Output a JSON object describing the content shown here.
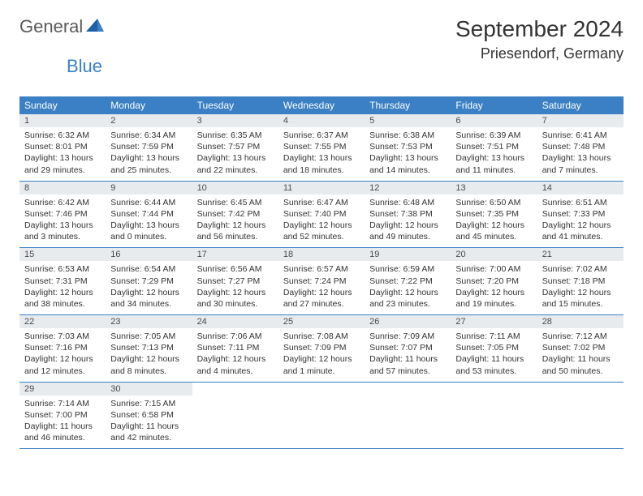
{
  "logo": {
    "text1": "General",
    "text2": "Blue"
  },
  "title": "September 2024",
  "location": "Priesendorf, Germany",
  "headers": [
    "Sunday",
    "Monday",
    "Tuesday",
    "Wednesday",
    "Thursday",
    "Friday",
    "Saturday"
  ],
  "colors": {
    "header_bg": "#3b7fc4",
    "header_text": "#ffffff",
    "daynum_bg": "#e8ebee",
    "cell_border": "#3b7fc4",
    "body_text": "#333333",
    "logo_gray": "#5a5a5a",
    "logo_blue": "#3b7fc4",
    "background": "#ffffff"
  },
  "typography": {
    "title_fontsize": 28,
    "location_fontsize": 18,
    "header_fontsize": 12,
    "daynum_fontsize": 11,
    "info_fontsize": 10.5,
    "font_family": "Arial"
  },
  "weeks": [
    [
      {
        "n": "1",
        "sr": "6:32 AM",
        "ss": "8:01 PM",
        "dl": "13 hours and 29 minutes."
      },
      {
        "n": "2",
        "sr": "6:34 AM",
        "ss": "7:59 PM",
        "dl": "13 hours and 25 minutes."
      },
      {
        "n": "3",
        "sr": "6:35 AM",
        "ss": "7:57 PM",
        "dl": "13 hours and 22 minutes."
      },
      {
        "n": "4",
        "sr": "6:37 AM",
        "ss": "7:55 PM",
        "dl": "13 hours and 18 minutes."
      },
      {
        "n": "5",
        "sr": "6:38 AM",
        "ss": "7:53 PM",
        "dl": "13 hours and 14 minutes."
      },
      {
        "n": "6",
        "sr": "6:39 AM",
        "ss": "7:51 PM",
        "dl": "13 hours and 11 minutes."
      },
      {
        "n": "7",
        "sr": "6:41 AM",
        "ss": "7:48 PM",
        "dl": "13 hours and 7 minutes."
      }
    ],
    [
      {
        "n": "8",
        "sr": "6:42 AM",
        "ss": "7:46 PM",
        "dl": "13 hours and 3 minutes."
      },
      {
        "n": "9",
        "sr": "6:44 AM",
        "ss": "7:44 PM",
        "dl": "13 hours and 0 minutes."
      },
      {
        "n": "10",
        "sr": "6:45 AM",
        "ss": "7:42 PM",
        "dl": "12 hours and 56 minutes."
      },
      {
        "n": "11",
        "sr": "6:47 AM",
        "ss": "7:40 PM",
        "dl": "12 hours and 52 minutes."
      },
      {
        "n": "12",
        "sr": "6:48 AM",
        "ss": "7:38 PM",
        "dl": "12 hours and 49 minutes."
      },
      {
        "n": "13",
        "sr": "6:50 AM",
        "ss": "7:35 PM",
        "dl": "12 hours and 45 minutes."
      },
      {
        "n": "14",
        "sr": "6:51 AM",
        "ss": "7:33 PM",
        "dl": "12 hours and 41 minutes."
      }
    ],
    [
      {
        "n": "15",
        "sr": "6:53 AM",
        "ss": "7:31 PM",
        "dl": "12 hours and 38 minutes."
      },
      {
        "n": "16",
        "sr": "6:54 AM",
        "ss": "7:29 PM",
        "dl": "12 hours and 34 minutes."
      },
      {
        "n": "17",
        "sr": "6:56 AM",
        "ss": "7:27 PM",
        "dl": "12 hours and 30 minutes."
      },
      {
        "n": "18",
        "sr": "6:57 AM",
        "ss": "7:24 PM",
        "dl": "12 hours and 27 minutes."
      },
      {
        "n": "19",
        "sr": "6:59 AM",
        "ss": "7:22 PM",
        "dl": "12 hours and 23 minutes."
      },
      {
        "n": "20",
        "sr": "7:00 AM",
        "ss": "7:20 PM",
        "dl": "12 hours and 19 minutes."
      },
      {
        "n": "21",
        "sr": "7:02 AM",
        "ss": "7:18 PM",
        "dl": "12 hours and 15 minutes."
      }
    ],
    [
      {
        "n": "22",
        "sr": "7:03 AM",
        "ss": "7:16 PM",
        "dl": "12 hours and 12 minutes."
      },
      {
        "n": "23",
        "sr": "7:05 AM",
        "ss": "7:13 PM",
        "dl": "12 hours and 8 minutes."
      },
      {
        "n": "24",
        "sr": "7:06 AM",
        "ss": "7:11 PM",
        "dl": "12 hours and 4 minutes."
      },
      {
        "n": "25",
        "sr": "7:08 AM",
        "ss": "7:09 PM",
        "dl": "12 hours and 1 minute."
      },
      {
        "n": "26",
        "sr": "7:09 AM",
        "ss": "7:07 PM",
        "dl": "11 hours and 57 minutes."
      },
      {
        "n": "27",
        "sr": "7:11 AM",
        "ss": "7:05 PM",
        "dl": "11 hours and 53 minutes."
      },
      {
        "n": "28",
        "sr": "7:12 AM",
        "ss": "7:02 PM",
        "dl": "11 hours and 50 minutes."
      }
    ],
    [
      {
        "n": "29",
        "sr": "7:14 AM",
        "ss": "7:00 PM",
        "dl": "11 hours and 46 minutes."
      },
      {
        "n": "30",
        "sr": "7:15 AM",
        "ss": "6:58 PM",
        "dl": "11 hours and 42 minutes."
      },
      null,
      null,
      null,
      null,
      null
    ]
  ],
  "labels": {
    "sunrise": "Sunrise:",
    "sunset": "Sunset:",
    "daylight": "Daylight:"
  }
}
